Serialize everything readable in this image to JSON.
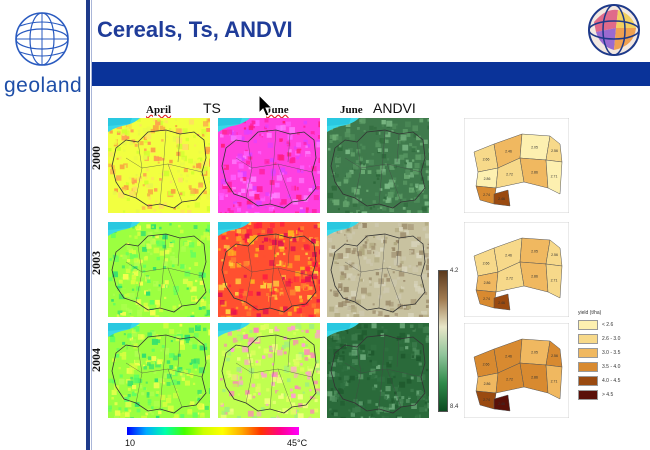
{
  "slide": {
    "title": "Cereals, Ts, ANDVI",
    "logo_text": "geoland"
  },
  "headers": {
    "april": "April",
    "ts": "TS",
    "june_ts": "June",
    "june_ndvi": "June",
    "andvi": "ANDVI"
  },
  "years": [
    "2000",
    "2003",
    "2004"
  ],
  "ts_colorbar": {
    "min_label": "10",
    "max_label": "45°C"
  },
  "ndvi_colorbar": {
    "max_label": "4.2",
    "min_label": "8.4"
  },
  "yield_legend": {
    "title": "yield (t/ha)",
    "items": [
      {
        "label": "< 2.6",
        "color": "#fdf0b0"
      },
      {
        "label": "2.6 - 3.0",
        "color": "#f7d98a"
      },
      {
        "label": "3.0 - 3.5",
        "color": "#f0b860"
      },
      {
        "label": "3.5 - 4.0",
        "color": "#d88a30"
      },
      {
        "label": "4.0 - 4.5",
        "color": "#9a4a10"
      },
      {
        "label": "> 4.5",
        "color": "#5a1008"
      }
    ]
  },
  "colors": {
    "accent": "#0a3399",
    "title": "#1f3c99"
  }
}
